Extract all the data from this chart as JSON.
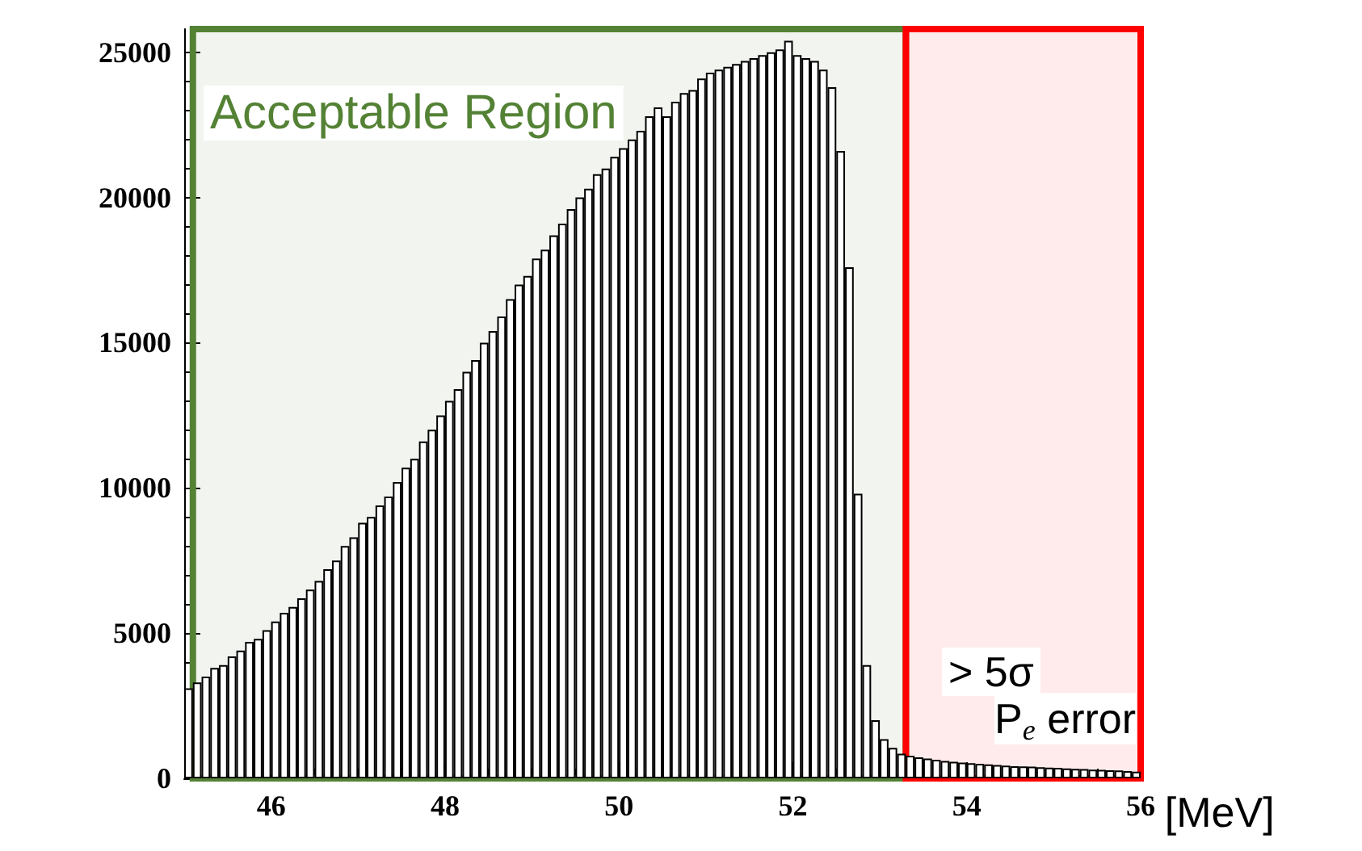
{
  "chart_data": {
    "type": "histogram",
    "xlabel": "[MeV]",
    "bins": [
      45.0,
      45.1,
      45.2,
      45.3,
      45.4,
      45.5,
      45.6,
      45.7,
      45.8,
      45.9,
      46.0,
      46.1,
      46.2,
      46.3,
      46.4,
      46.5,
      46.6,
      46.7,
      46.8,
      46.9,
      47.0,
      47.1,
      47.2,
      47.3,
      47.4,
      47.5,
      47.6,
      47.7,
      47.8,
      47.9,
      48.0,
      48.1,
      48.2,
      48.3,
      48.4,
      48.5,
      48.6,
      48.7,
      48.8,
      48.9,
      49.0,
      49.1,
      49.2,
      49.3,
      49.4,
      49.5,
      49.6,
      49.7,
      49.8,
      49.9,
      50.0,
      50.1,
      50.2,
      50.3,
      50.4,
      50.5,
      50.6,
      50.7,
      50.8,
      50.9,
      51.0,
      51.1,
      51.2,
      51.3,
      51.4,
      51.5,
      51.6,
      51.7,
      51.8,
      51.9,
      52.0,
      52.1,
      52.2,
      52.3,
      52.4,
      52.5,
      52.6,
      52.7,
      52.8,
      52.9,
      53.0,
      53.1,
      53.2,
      53.3,
      53.4,
      53.5,
      53.6,
      53.7,
      53.8,
      53.9,
      54.0,
      54.1,
      54.2,
      54.3,
      54.4,
      54.5,
      54.6,
      54.7,
      54.8,
      54.9,
      55.0,
      55.1,
      55.2,
      55.3,
      55.4,
      55.5,
      55.6,
      55.7,
      55.8,
      55.9,
      56.0
    ],
    "values": [
      3100,
      3300,
      3500,
      3800,
      3900,
      4200,
      4400,
      4700,
      4800,
      5100,
      5400,
      5700,
      5900,
      6200,
      6500,
      6800,
      7200,
      7500,
      8000,
      8300,
      8800,
      9000,
      9400,
      9700,
      10200,
      10700,
      11000,
      11600,
      12000,
      12500,
      13000,
      13400,
      14000,
      14400,
      15000,
      15400,
      15900,
      16500,
      17000,
      17300,
      17900,
      18200,
      18700,
      19100,
      19600,
      20000,
      20300,
      20800,
      21000,
      21400,
      21700,
      22000,
      22300,
      22800,
      23100,
      22800,
      23300,
      23600,
      23700,
      24100,
      24300,
      24400,
      24500,
      24600,
      24700,
      24800,
      24900,
      25000,
      25100,
      25400,
      24900,
      24800,
      24700,
      24400,
      23800,
      21600,
      17600,
      9800,
      3900,
      2000,
      1350,
      1050,
      850,
      780,
      720,
      680,
      640,
      600,
      570,
      540,
      520,
      500,
      480,
      460,
      440,
      420,
      410,
      400,
      380,
      370,
      360,
      340,
      330,
      320,
      300,
      290,
      280,
      270,
      250,
      230
    ],
    "color": "#000000",
    "xlim": [
      45,
      56
    ],
    "xticks": [
      46,
      48,
      50,
      52,
      54,
      56
    ],
    "ylim": [
      0,
      25800
    ],
    "yticks": [
      0,
      5000,
      10000,
      15000,
      20000,
      25000
    ],
    "bands": [
      {
        "axis": "x",
        "from": 45.1,
        "to": 53.3,
        "label": "Acceptable Region",
        "color": "#548235"
      },
      {
        "axis": "x",
        "from": 53.3,
        "to": 56,
        "label": "> 5σ",
        "color": "#ff0000"
      }
    ],
    "annotations": [
      "P$_{e}$ error"
    ]
  }
}
